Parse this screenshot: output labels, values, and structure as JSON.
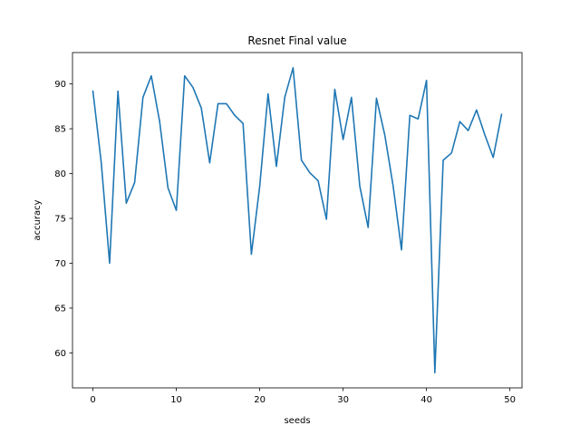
{
  "chart_data": {
    "type": "line",
    "title": "Resnet Final value",
    "xlabel": "seeds",
    "ylabel": "accuracy",
    "xlim": [
      -2.45,
      51.45
    ],
    "ylim": [
      56.1,
      93.5
    ],
    "xticks": [
      0,
      10,
      20,
      30,
      40,
      50
    ],
    "yticks": [
      60,
      65,
      70,
      75,
      80,
      85,
      90
    ],
    "grid": false,
    "color": "#1f77b4",
    "series": [
      {
        "x": [
          0,
          1,
          2,
          3,
          4,
          5,
          6,
          7,
          8,
          9,
          10,
          11,
          12,
          13,
          14,
          15,
          16,
          17,
          18,
          19,
          20,
          21,
          22,
          23,
          24,
          25,
          26,
          27,
          28,
          29,
          30,
          31,
          32,
          33,
          34,
          35,
          36,
          37,
          38,
          39,
          40,
          41,
          42,
          43,
          44,
          45,
          46,
          47,
          48,
          49
        ],
        "values": [
          89.2,
          81.2,
          70.0,
          89.2,
          76.7,
          79.0,
          88.5,
          90.9,
          85.8,
          78.4,
          75.9,
          90.9,
          89.6,
          87.3,
          81.2,
          87.8,
          87.8,
          86.5,
          85.6,
          71.0,
          78.6,
          88.9,
          80.8,
          88.5,
          91.8,
          81.5,
          80.1,
          79.2,
          74.9,
          89.4,
          83.8,
          88.5,
          78.6,
          74.0,
          88.4,
          84.3,
          78.6,
          71.5,
          86.5,
          86.1,
          90.4,
          57.8,
          81.5,
          82.3,
          85.8,
          84.8,
          87.1,
          84.3,
          81.8,
          86.6
        ]
      }
    ]
  }
}
